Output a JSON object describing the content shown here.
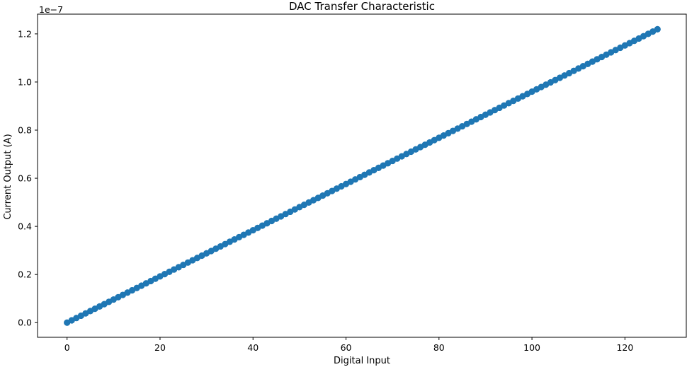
{
  "chart_data": {
    "type": "scatter",
    "title": "DAC Transfer Characteristic",
    "xlabel": "Digital Input",
    "ylabel": "Current Output (A)",
    "y_offset_label": "1e−7",
    "y_scale": 1e-07,
    "xlim": [
      -6.35,
      133.35
    ],
    "ylim": [
      -6.1e-09,
      1.282e-07
    ],
    "xticks": [
      0,
      20,
      40,
      60,
      80,
      100,
      120
    ],
    "xtick_labels": [
      "0",
      "20",
      "40",
      "60",
      "80",
      "100",
      "120"
    ],
    "yticks": [
      0,
      2e-08,
      4e-08,
      6e-08,
      8e-08,
      1e-07,
      1.2e-07
    ],
    "ytick_labels": [
      "0.0",
      "0.2",
      "0.4",
      "0.6",
      "0.8",
      "1.0",
      "1.2"
    ],
    "grid": false,
    "series": [
      {
        "color": "#1f77b4",
        "marker": "circle",
        "x_start": 0,
        "x_end": 127,
        "x_step": 1,
        "y_start": 0,
        "y_step": 9.6e-10
      }
    ]
  }
}
